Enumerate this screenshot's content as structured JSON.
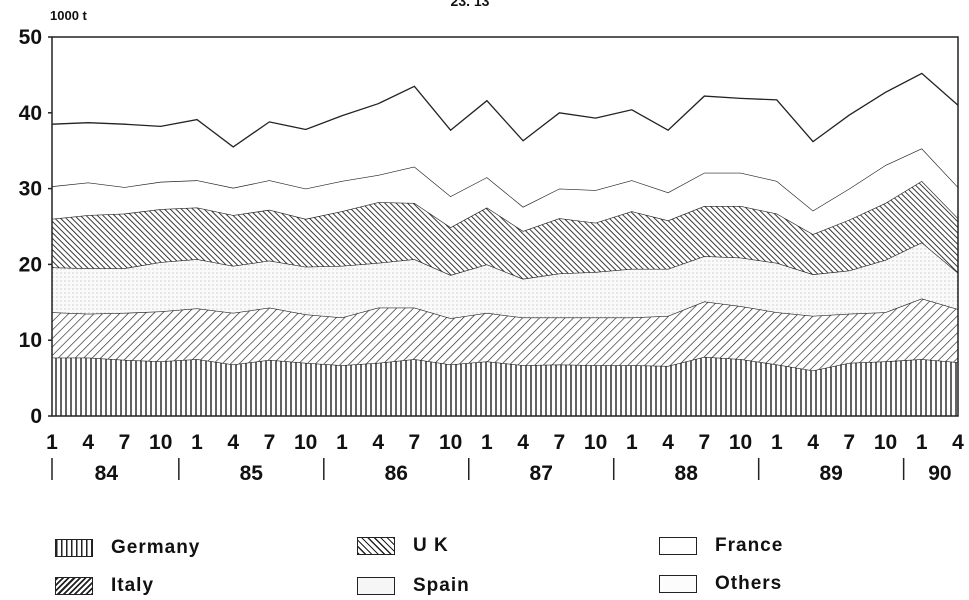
{
  "chart_data": {
    "type": "area",
    "stacked": true,
    "title": "23. 13",
    "ylabel": "1000 t",
    "ylim": [
      0,
      50
    ],
    "yticks": [
      "0",
      "10",
      "20",
      "30",
      "40",
      "50"
    ],
    "x": [
      "1",
      "4",
      "7",
      "10",
      "1",
      "4",
      "7",
      "10",
      "1",
      "4",
      "7",
      "10",
      "1",
      "4",
      "7",
      "10",
      "1",
      "4",
      "7",
      "10",
      "1",
      "4",
      "7",
      "10",
      "1",
      "4"
    ],
    "year_labels": [
      "84",
      "85",
      "86",
      "87",
      "88",
      "89",
      "90"
    ],
    "grid": false,
    "legend_position": "bottom",
    "series": [
      {
        "name": "Germany",
        "pattern": "vertical-lines",
        "values": [
          7.7,
          7.7,
          7.4,
          7.2,
          7.5,
          6.8,
          7.4,
          7.0,
          6.7,
          7.0,
          7.5,
          6.8,
          7.2,
          6.7,
          6.8,
          6.7,
          6.7,
          6.6,
          7.8,
          7.5,
          6.8,
          6.0,
          7.0,
          7.2,
          7.5,
          7.1
        ]
      },
      {
        "name": "U K",
        "pattern": "diagonal-hatch",
        "values": [
          6.0,
          5.8,
          6.2,
          6.6,
          6.7,
          6.8,
          6.9,
          6.4,
          6.3,
          7.3,
          6.8,
          6.1,
          6.4,
          6.3,
          6.2,
          6.3,
          6.3,
          6.6,
          7.3,
          7.0,
          6.9,
          7.2,
          6.5,
          6.5,
          8.0,
          7.0
        ]
      },
      {
        "name": "Spain",
        "pattern": "light-dots",
        "values": [
          5.9,
          6.0,
          5.9,
          6.5,
          6.5,
          6.2,
          6.2,
          6.3,
          6.8,
          5.9,
          6.4,
          5.7,
          6.4,
          5.1,
          5.8,
          6.0,
          6.4,
          6.2,
          6.0,
          6.4,
          6.5,
          5.5,
          5.7,
          6.9,
          7.4,
          4.8
        ]
      },
      {
        "name": "Italy",
        "pattern": "dense-hatch",
        "values": [
          6.4,
          7.0,
          7.2,
          7.0,
          6.8,
          6.7,
          6.7,
          6.3,
          7.2,
          8.0,
          7.4,
          6.3,
          7.5,
          6.3,
          7.3,
          6.5,
          7.6,
          6.4,
          6.6,
          6.8,
          6.5,
          5.3,
          6.7,
          7.5,
          8.1,
          7.2
        ]
      },
      {
        "name": "France",
        "pattern": "blank",
        "values": [
          4.3,
          4.3,
          3.5,
          3.6,
          3.6,
          3.6,
          3.9,
          4.0,
          4.0,
          3.6,
          4.8,
          4.1,
          4.0,
          3.2,
          3.9,
          4.3,
          4.1,
          3.7,
          4.4,
          4.4,
          4.3,
          3.1,
          4.1,
          5.0,
          4.3,
          4.1
        ]
      },
      {
        "name": "Others",
        "pattern": "blank",
        "values": [
          8.2,
          7.9,
          8.3,
          7.3,
          8.0,
          5.4,
          7.7,
          7.8,
          8.6,
          9.4,
          10.6,
          8.7,
          10.1,
          8.7,
          10.0,
          9.5,
          9.3,
          8.2,
          10.1,
          9.8,
          10.7,
          9.1,
          9.7,
          9.6,
          9.9,
          10.8
        ]
      }
    ]
  },
  "legend": {
    "items": [
      {
        "label": "Germany"
      },
      {
        "label": "U K"
      },
      {
        "label": "France"
      },
      {
        "label": "Italy"
      },
      {
        "label": "Spain"
      },
      {
        "label": "Others"
      }
    ]
  }
}
